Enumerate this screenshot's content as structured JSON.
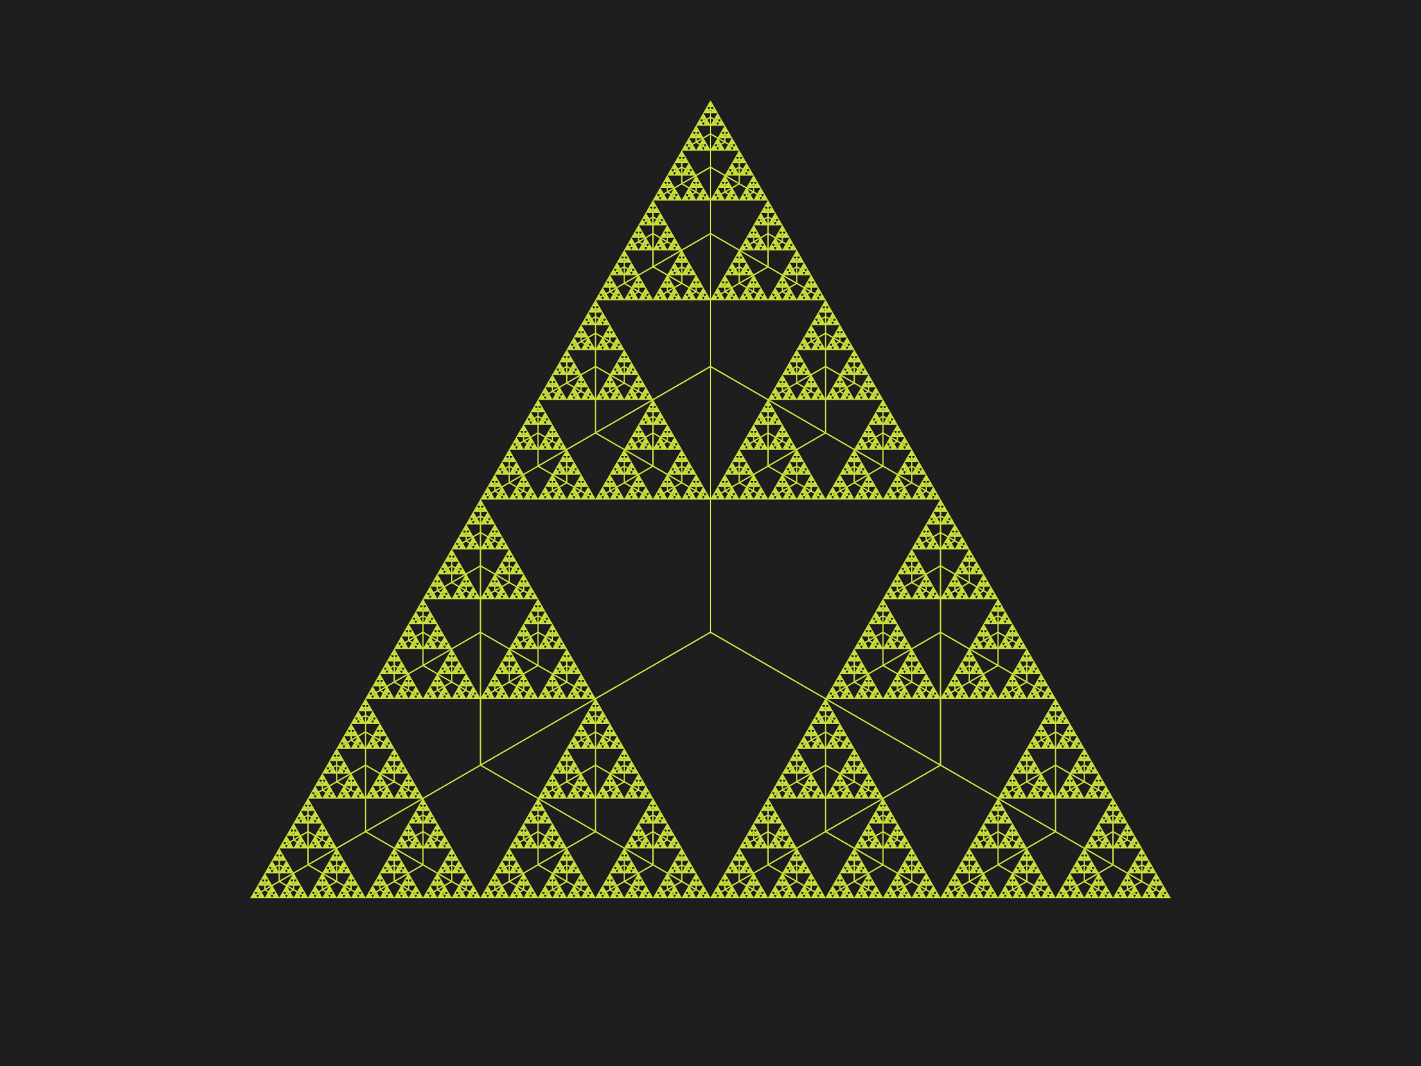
{
  "canvas": {
    "background_color": "#1e1e1e"
  },
  "fractal": {
    "type": "sierpinski-triangle-with-tripod-tree",
    "color": "#c8dc3c",
    "recursion_depth": 7
  }
}
